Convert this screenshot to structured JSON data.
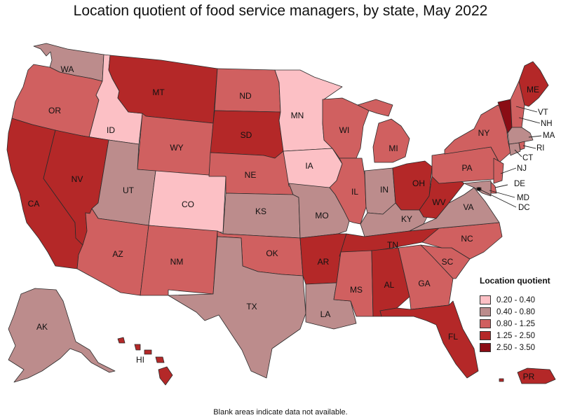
{
  "title": "Location quotient of food service managers, by state, May 2022",
  "footnote": "Blank areas indicate data not available.",
  "legend": {
    "title": "Location quotient",
    "items": [
      {
        "label": "0.20 - 0.40",
        "color": "#fcc0c5"
      },
      {
        "label": "0.40 - 0.80",
        "color": "#bc8c8c"
      },
      {
        "label": "0.80 - 1.25",
        "color": "#d06060"
      },
      {
        "label": "1.25 - 2.50",
        "color": "#b42828"
      },
      {
        "label": "2.50 - 3.50",
        "color": "#8a0c14"
      }
    ]
  },
  "states": {
    "WA": "0.40 - 0.80",
    "OR": "0.80 - 1.25",
    "CA": "1.25 - 2.50",
    "ID": "0.20 - 0.40",
    "NV": "1.25 - 2.50",
    "MT": "1.25 - 2.50",
    "WY": "0.80 - 1.25",
    "UT": "0.40 - 0.80",
    "CO": "0.20 - 0.40",
    "AZ": "0.80 - 1.25",
    "NM": "0.80 - 1.25",
    "ND": "0.80 - 1.25",
    "SD": "1.25 - 2.50",
    "NE": "0.80 - 1.25",
    "KS": "0.40 - 0.80",
    "OK": "0.80 - 1.25",
    "TX": "0.40 - 0.80",
    "MN": "0.20 - 0.40",
    "IA": "0.20 - 0.40",
    "MO": "0.40 - 0.80",
    "AR": "1.25 - 2.50",
    "LA": "0.40 - 0.80",
    "WI": "0.80 - 1.25",
    "IL": "0.80 - 1.25",
    "MI": "0.80 - 1.25",
    "IN": "0.40 - 0.80",
    "OH": "1.25 - 2.50",
    "KY": "0.40 - 0.80",
    "TN": "1.25 - 2.50",
    "MS": "0.80 - 1.25",
    "AL": "1.25 - 2.50",
    "GA": "0.80 - 1.25",
    "FL": "1.25 - 2.50",
    "SC": "0.80 - 1.25",
    "NC": "0.80 - 1.25",
    "VA": "0.40 - 0.80",
    "WV": "1.25 - 2.50",
    "PA": "0.80 - 1.25",
    "NY": "0.80 - 1.25",
    "ME": "1.25 - 2.50",
    "VT": "2.50 - 3.50",
    "NH": "0.80 - 1.25",
    "MA": "0.40 - 0.80",
    "RI": "0.80 - 1.25",
    "CT": "0.40 - 0.80",
    "NJ": "0.80 - 1.25",
    "DE": "0.80 - 1.25",
    "MD": "0.40 - 0.80",
    "DC": "1.25 - 2.50",
    "AK": "0.40 - 0.80",
    "HI": "1.25 - 2.50",
    "PR": "1.25 - 2.50"
  },
  "state_labels": {
    "WA": "WA",
    "OR": "OR",
    "CA": "CA",
    "ID": "ID",
    "NV": "NV",
    "MT": "MT",
    "WY": "WY",
    "UT": "UT",
    "CO": "CO",
    "AZ": "AZ",
    "NM": "NM",
    "ND": "ND",
    "SD": "SD",
    "NE": "NE",
    "KS": "KS",
    "OK": "OK",
    "TX": "TX",
    "MN": "MN",
    "IA": "IA",
    "MO": "MO",
    "AR": "AR",
    "LA": "LA",
    "WI": "WI",
    "IL": "IL",
    "MI": "MI",
    "IN": "IN",
    "OH": "OH",
    "KY": "KY",
    "TN": "TN",
    "MS": "MS",
    "AL": "AL",
    "GA": "GA",
    "FL": "FL",
    "SC": "SC",
    "NC": "NC",
    "VA": "VA",
    "WV": "WV",
    "PA": "PA",
    "NY": "NY",
    "ME": "ME",
    "VT": "VT",
    "NH": "NH",
    "MA": "MA",
    "RI": "RI",
    "CT": "CT",
    "NJ": "NJ",
    "DE": "DE",
    "MD": "MD",
    "DC": "DC",
    "AK": "AK",
    "HI": "HI",
    "PR": "PR"
  }
}
